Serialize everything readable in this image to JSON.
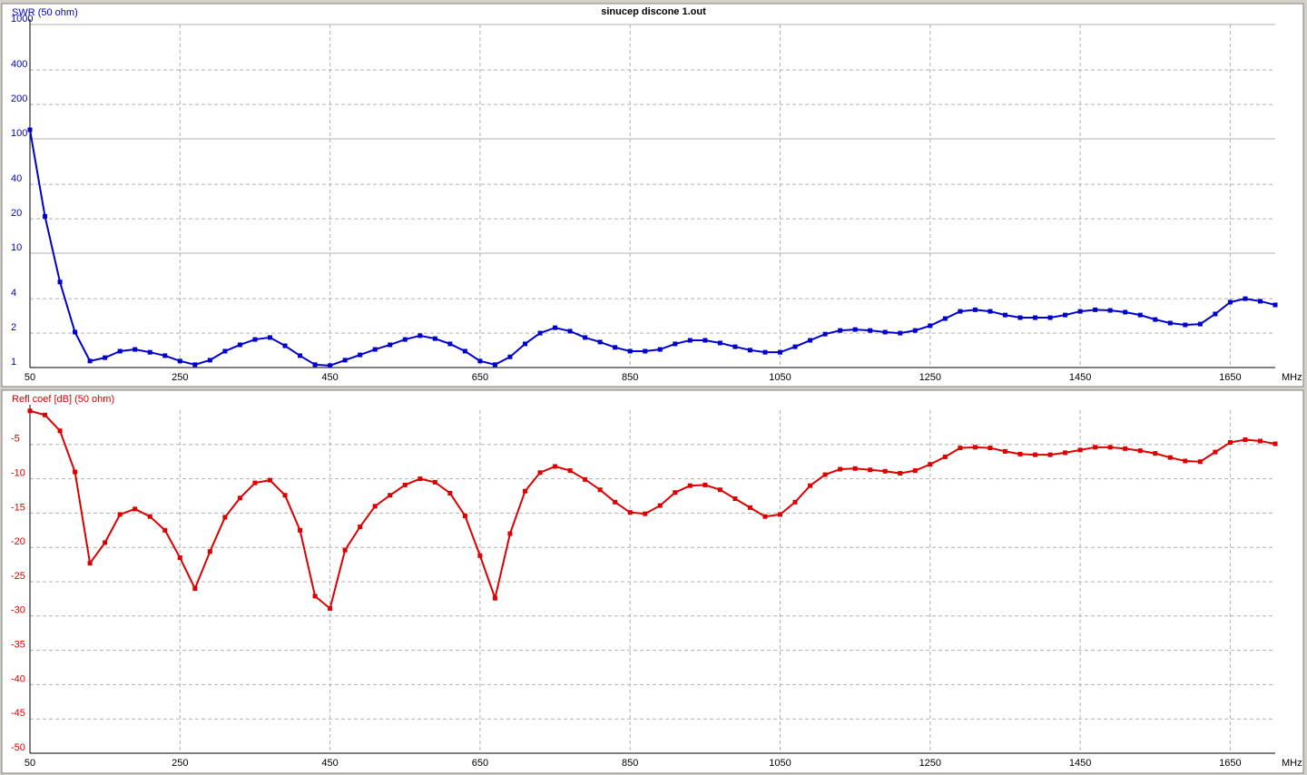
{
  "chart_data": [
    {
      "type": "line",
      "title": "sinucep discone 1.out",
      "y_label": "SWR (50 ohm)",
      "x_label": "MHz",
      "x": [
        50,
        70,
        90,
        110,
        130,
        150,
        170,
        190,
        210,
        230,
        250,
        270,
        290,
        310,
        330,
        350,
        370,
        390,
        410,
        430,
        450,
        470,
        490,
        510,
        530,
        550,
        570,
        590,
        610,
        630,
        650,
        670,
        690,
        710,
        730,
        750,
        770,
        790,
        810,
        830,
        850,
        870,
        890,
        910,
        930,
        950,
        970,
        990,
        1010,
        1030,
        1050,
        1070,
        1090,
        1110,
        1130,
        1150,
        1170,
        1190,
        1210,
        1230,
        1250,
        1270,
        1290,
        1310,
        1330,
        1350,
        1370,
        1390,
        1410,
        1430,
        1450,
        1470,
        1490,
        1510,
        1530,
        1550,
        1570,
        1590,
        1610,
        1630,
        1650,
        1670,
        1690,
        1710
      ],
      "xlim": [
        50,
        1710
      ],
      "xticks": [
        50,
        250,
        450,
        650,
        850,
        1050,
        1250,
        1450,
        1650
      ],
      "ylim": [
        1,
        1000
      ],
      "yticks": [
        1,
        2,
        4,
        10,
        20,
        40,
        100,
        200,
        400,
        1000
      ],
      "log_y": true,
      "grid": true,
      "series": [
        {
          "color": "#0000cc",
          "values": [
            120,
            21,
            5.6,
            2.04,
            1.14,
            1.22,
            1.39,
            1.44,
            1.36,
            1.27,
            1.14,
            1.06,
            1.16,
            1.39,
            1.58,
            1.76,
            1.83,
            1.55,
            1.27,
            1.06,
            1.04,
            1.16,
            1.29,
            1.44,
            1.58,
            1.76,
            1.9,
            1.79,
            1.61,
            1.39,
            1.14,
            1.06,
            1.24,
            1.61,
            2.0,
            2.23,
            2.08,
            1.83,
            1.67,
            1.5,
            1.39,
            1.39,
            1.44,
            1.61,
            1.73,
            1.73,
            1.64,
            1.52,
            1.42,
            1.36,
            1.36,
            1.52,
            1.73,
            1.96,
            2.11,
            2.15,
            2.11,
            2.04,
            2.0,
            2.11,
            2.32,
            2.68,
            3.1,
            3.2,
            3.1,
            2.88,
            2.73,
            2.73,
            2.73,
            2.88,
            3.1,
            3.2,
            3.16,
            3.05,
            2.88,
            2.63,
            2.45,
            2.36,
            2.4,
            2.94,
            3.73,
            4.0,
            3.8,
            3.53
          ]
        }
      ]
    },
    {
      "type": "line",
      "y_label": "Refl coef [dB] (50 ohm)",
      "x_label": "MHz",
      "x": [
        50,
        70,
        90,
        110,
        130,
        150,
        170,
        190,
        210,
        230,
        250,
        270,
        290,
        310,
        330,
        350,
        370,
        390,
        410,
        430,
        450,
        470,
        490,
        510,
        530,
        550,
        570,
        590,
        610,
        630,
        650,
        670,
        690,
        710,
        730,
        750,
        770,
        790,
        810,
        830,
        850,
        870,
        890,
        910,
        930,
        950,
        970,
        990,
        1010,
        1030,
        1050,
        1070,
        1090,
        1110,
        1130,
        1150,
        1170,
        1190,
        1210,
        1230,
        1250,
        1270,
        1290,
        1310,
        1330,
        1350,
        1370,
        1390,
        1410,
        1430,
        1450,
        1470,
        1490,
        1510,
        1530,
        1550,
        1570,
        1590,
        1610,
        1630,
        1650,
        1670,
        1690,
        1710
      ],
      "xlim": [
        50,
        1710
      ],
      "xticks": [
        50,
        250,
        450,
        650,
        850,
        1050,
        1250,
        1450,
        1650
      ],
      "ylim": [
        -50,
        0
      ],
      "yticks": [
        -50,
        -45,
        -40,
        -35,
        -30,
        -25,
        -20,
        -15,
        -10,
        -5
      ],
      "grid": true,
      "series": [
        {
          "color": "#dd0000",
          "values": [
            -0.1,
            -0.7,
            -3,
            -9,
            -22.3,
            -19.3,
            -15.2,
            -14.4,
            -15.5,
            -17.5,
            -21.5,
            -26,
            -20.6,
            -15.6,
            -12.8,
            -10.6,
            -10.2,
            -12.4,
            -17.5,
            -27.1,
            -28.9,
            -20.4,
            -17,
            -14,
            -12.4,
            -10.9,
            -10,
            -10.5,
            -12.1,
            -15.4,
            -21.2,
            -27.4,
            -18,
            -11.8,
            -9.1,
            -8.2,
            -8.8,
            -10.1,
            -11.6,
            -13.4,
            -14.9,
            -15.1,
            -13.9,
            -12,
            -11,
            -10.9,
            -11.6,
            -12.9,
            -14.2,
            -15.5,
            -15.2,
            -13.4,
            -11,
            -9.4,
            -8.6,
            -8.5,
            -8.7,
            -8.9,
            -9.2,
            -8.8,
            -7.9,
            -6.8,
            -5.5,
            -5.4,
            -5.5,
            -6,
            -6.4,
            -6.5,
            -6.5,
            -6.2,
            -5.8,
            -5.4,
            -5.4,
            -5.6,
            -5.9,
            -6.3,
            -6.9,
            -7.4,
            -7.5,
            -6.1,
            -4.7,
            -4.3,
            -4.5,
            -4.9
          ]
        }
      ]
    }
  ]
}
